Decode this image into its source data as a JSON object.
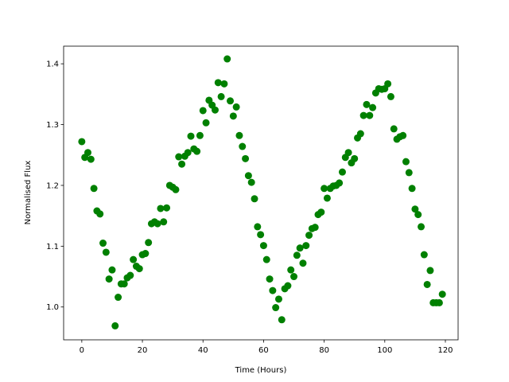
{
  "chart_data": {
    "type": "scatter",
    "xlabel": "Time (Hours)",
    "ylabel": "Normalised Flux",
    "color": "#008000",
    "grid": false,
    "xlim": [
      -6,
      124.2
    ],
    "ylim": [
      0.946,
      1.429
    ],
    "xticks": [
      0,
      20,
      40,
      60,
      80,
      100,
      120
    ],
    "yticks": [
      {
        "value": 1.0,
        "label": "1.0"
      },
      1.1,
      1.2,
      1.3,
      1.4
    ],
    "x": [
      0,
      1,
      2,
      3,
      4,
      5,
      6,
      7,
      8,
      9,
      10,
      11,
      12,
      13,
      14,
      15,
      16,
      17,
      18,
      19,
      20,
      21,
      22,
      23,
      24,
      25,
      26,
      27,
      28,
      29,
      30,
      31,
      32,
      33,
      34,
      35,
      36,
      37,
      38,
      39,
      40,
      41,
      42,
      43,
      44,
      45,
      46,
      47,
      48,
      49,
      50,
      51,
      52,
      53,
      54,
      55,
      56,
      57,
      58,
      59,
      60,
      61,
      62,
      63,
      64,
      65,
      66,
      67,
      68,
      69,
      70,
      71,
      72,
      73,
      74,
      75,
      76,
      77,
      78,
      79,
      80,
      81,
      82,
      83,
      84,
      85,
      86,
      87,
      88,
      89,
      90,
      91,
      92,
      93,
      94,
      95,
      96,
      97,
      98,
      99,
      100,
      101,
      102,
      103,
      104,
      105,
      106,
      107,
      108,
      109,
      110,
      111,
      112,
      113,
      114,
      115,
      116,
      117,
      118,
      119
    ],
    "values": [
      1.272,
      1.246,
      1.254,
      1.243,
      1.195,
      1.158,
      1.153,
      1.105,
      1.09,
      1.046,
      1.061,
      0.969,
      1.016,
      1.038,
      1.038,
      1.048,
      1.052,
      1.078,
      1.067,
      1.063,
      1.086,
      1.088,
      1.106,
      1.137,
      1.14,
      1.137,
      1.162,
      1.14,
      1.163,
      1.2,
      1.197,
      1.193,
      1.247,
      1.235,
      1.248,
      1.254,
      1.281,
      1.26,
      1.256,
      1.282,
      1.323,
      1.303,
      1.34,
      1.332,
      1.324,
      1.369,
      1.346,
      1.367,
      1.408,
      1.339,
      1.314,
      1.329,
      1.282,
      1.264,
      1.244,
      1.216,
      1.205,
      1.178,
      1.132,
      1.119,
      1.101,
      1.078,
      1.046,
      1.027,
      0.999,
      1.013,
      0.979,
      1.03,
      1.035,
      1.061,
      1.05,
      1.085,
      1.097,
      1.072,
      1.101,
      1.118,
      1.129,
      1.131,
      1.152,
      1.156,
      1.195,
      1.179,
      1.195,
      1.199,
      1.2,
      1.204,
      1.222,
      1.246,
      1.254,
      1.237,
      1.244,
      1.278,
      1.285,
      1.315,
      1.333,
      1.315,
      1.328,
      1.352,
      1.359,
      1.358,
      1.359,
      1.367,
      1.346,
      1.293,
      1.276,
      1.28,
      1.282,
      1.239,
      1.221,
      1.195,
      1.161,
      1.152,
      1.132,
      1.086,
      1.037,
      1.06,
      1.007,
      1.007,
      1.007,
      1.021
    ]
  }
}
